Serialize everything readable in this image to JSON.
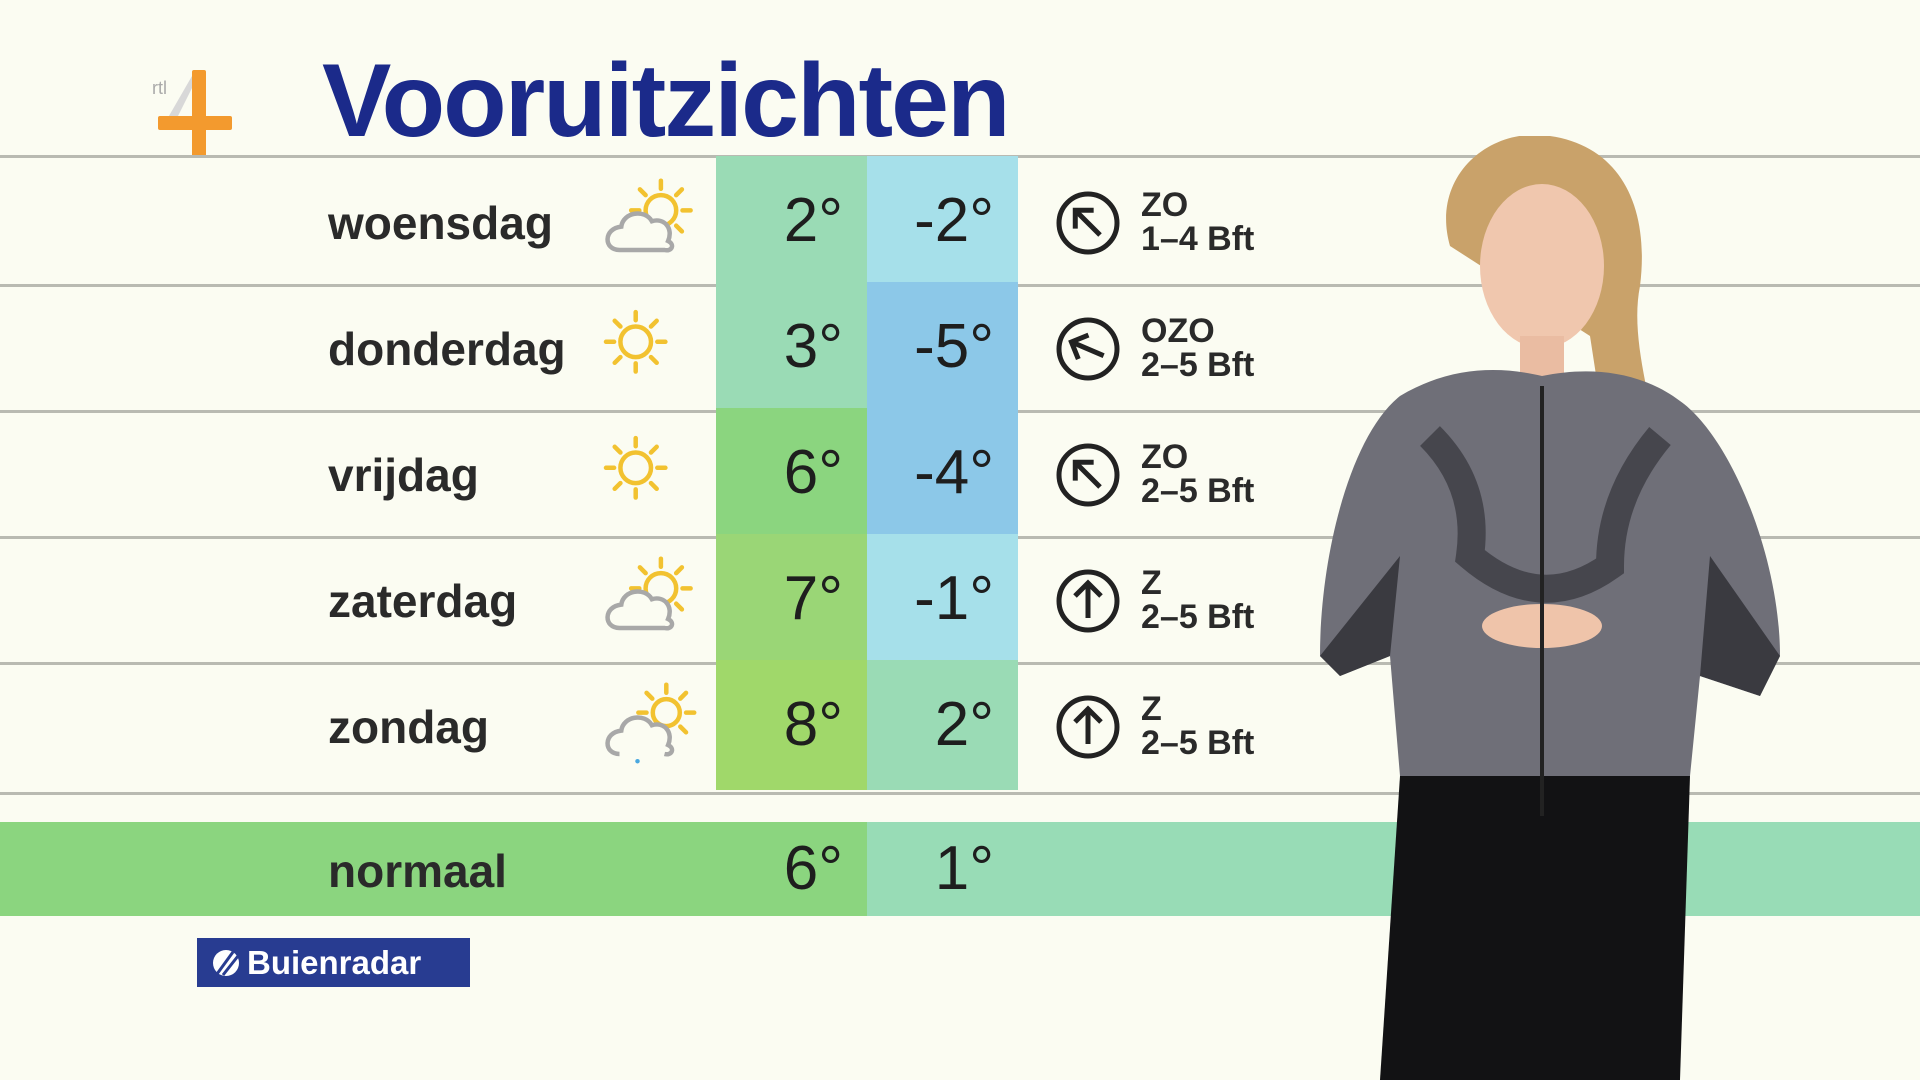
{
  "header": {
    "title": "Vooruitzichten",
    "channel_logo": "RTL 4"
  },
  "colors": {
    "title": "#1b2a8a",
    "mint": "#9adbb5",
    "light_blue": "#a6e0ea",
    "blue": "#8cc8e8",
    "green": "#8bd57f",
    "yellow_green": "#a0d86a"
  },
  "forecast": [
    {
      "day": "woensdag",
      "icon": "partly-cloudy-icon",
      "high": "2°",
      "low": "-2°",
      "high_color": "#9adbb5",
      "low_color": "#a6e0ea",
      "wind_dir": "ZO",
      "wind_force": "1–4 Bft",
      "arrow_rotation_deg": -45
    },
    {
      "day": "donderdag",
      "icon": "sun-icon",
      "high": "3°",
      "low": "-5°",
      "high_color": "#9adbb5",
      "low_color": "#8cc8e8",
      "wind_dir": "OZO",
      "wind_force": "2–5 Bft",
      "arrow_rotation_deg": -67
    },
    {
      "day": "vrijdag",
      "icon": "sun-icon",
      "high": "6°",
      "low": "-4°",
      "high_color": "#8bd57f",
      "low_color": "#8cc8e8",
      "wind_dir": "ZO",
      "wind_force": "2–5 Bft",
      "arrow_rotation_deg": -45
    },
    {
      "day": "zaterdag",
      "icon": "partly-cloudy-icon",
      "high": "7°",
      "low": "-1°",
      "high_color": "#9ad676",
      "low_color": "#a6e0ea",
      "wind_dir": "Z",
      "wind_force": "2–5 Bft",
      "arrow_rotation_deg": 0
    },
    {
      "day": "zondag",
      "icon": "cloud-sun-drizzle-icon",
      "high": "8°",
      "low": "2°",
      "high_color": "#a0d86a",
      "low_color": "#9adbb5",
      "wind_dir": "Z",
      "wind_force": "2–5 Bft",
      "arrow_rotation_deg": 0
    }
  ],
  "normal": {
    "label": "normaal",
    "high": "6°",
    "low": "1°"
  },
  "sponsor": {
    "label": "Buienradar"
  }
}
